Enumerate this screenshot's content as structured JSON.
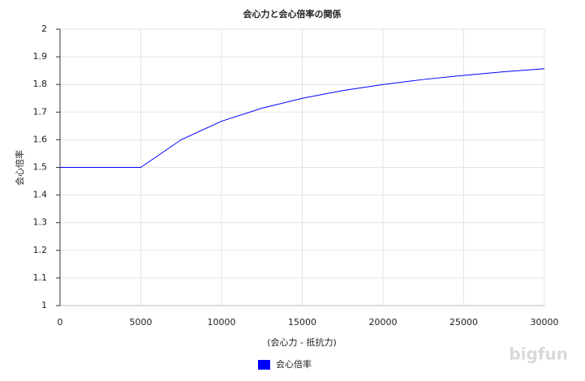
{
  "chart_data": {
    "type": "line",
    "title": "会心力と会心倍率の関係",
    "x_label": "(会心力 - 抵抗力)",
    "y_label": "会心倍率",
    "x": [
      0,
      5000,
      7500,
      10000,
      12500,
      15000,
      17500,
      20000,
      22500,
      25000,
      27500,
      30000
    ],
    "series": [
      {
        "name": "会心倍率",
        "color": "#0000ff",
        "values": [
          1.5,
          1.5,
          1.6,
          1.667,
          1.714,
          1.75,
          1.778,
          1.8,
          1.818,
          1.833,
          1.846,
          1.857
        ]
      }
    ],
    "xlim": [
      0,
      30000
    ],
    "xticks": [
      0,
      5000,
      10000,
      15000,
      20000,
      25000,
      30000
    ],
    "ylim": [
      1,
      2
    ],
    "yticks": [
      1,
      1.1,
      1.2,
      1.3,
      1.4,
      1.5,
      1.6,
      1.7,
      1.8,
      1.9,
      2
    ],
    "grid": true,
    "legend": "bottom",
    "watermark": "bigfun"
  }
}
